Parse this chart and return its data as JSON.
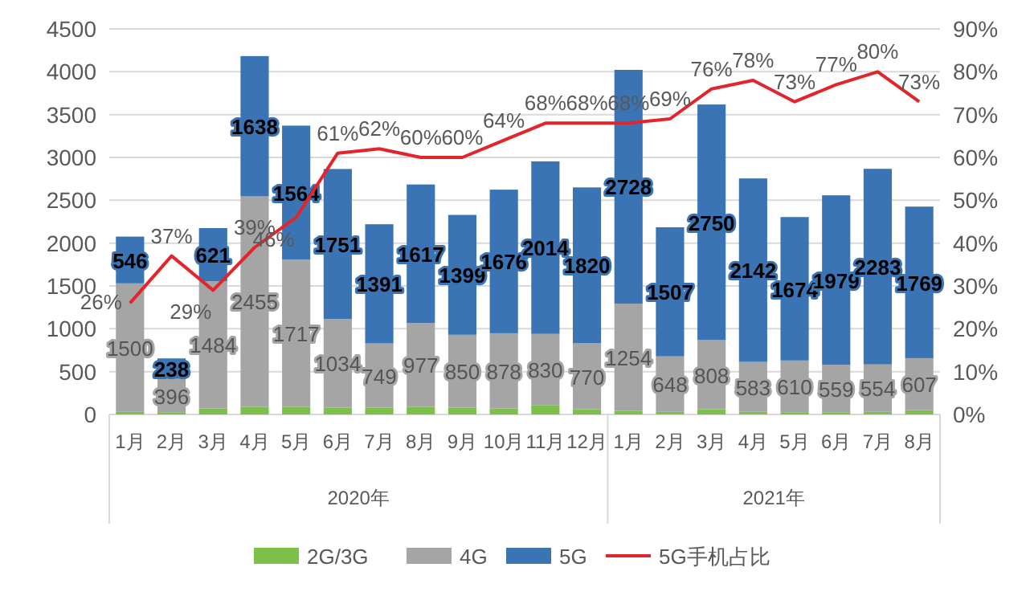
{
  "chart_data": {
    "type": "bar",
    "stacked": true,
    "categories": [
      "1月",
      "2月",
      "3月",
      "4月",
      "5月",
      "6月",
      "7月",
      "8月",
      "9月",
      "10月",
      "11月",
      "12月",
      "1月",
      "2月",
      "3月",
      "4月",
      "5月",
      "6月",
      "7月",
      "8月"
    ],
    "series": [
      {
        "name": "2G/3G",
        "color": "#7cc04a",
        "values": [
          30,
          20,
          70,
          90,
          90,
          80,
          80,
          90,
          80,
          70,
          110,
          60,
          40,
          30,
          60,
          30,
          20,
          20,
          30,
          50
        ]
      },
      {
        "name": "4G",
        "color": "#a5a5a5",
        "values": [
          1500,
          396,
          1484,
          2455,
          1717,
          1034,
          749,
          977,
          850,
          878,
          830,
          770,
          1254,
          648,
          808,
          583,
          610,
          559,
          554,
          607
        ],
        "value_labels": [
          "1500",
          "396",
          "1484",
          "2455",
          "1717",
          "1034",
          "749",
          "977",
          "850",
          "878",
          "830",
          "770",
          "1254",
          "648",
          "808",
          "583",
          "610",
          "559",
          "554",
          "607"
        ]
      },
      {
        "name": "5G",
        "color": "#3b74b4",
        "values": [
          546,
          238,
          621,
          1638,
          1564,
          1751,
          1391,
          1617,
          1399,
          1676,
          2014,
          1820,
          2728,
          1507,
          2750,
          2142,
          1674,
          1979,
          2283,
          1769
        ],
        "value_labels": [
          "546",
          "238",
          "621",
          "1638",
          "1564",
          "1751",
          "1391",
          "1617",
          "1399",
          "1676",
          "2014",
          "1820",
          "2728",
          "1507",
          "2750",
          "2142",
          "1674",
          "1979",
          "2283",
          "1769"
        ]
      },
      {
        "name": "5G手机占比",
        "type": "line",
        "axis": "y2",
        "color": "#e3242b",
        "values": [
          26,
          37,
          29,
          39,
          46,
          61,
          62,
          60,
          60,
          64,
          68,
          68,
          68,
          69,
          76,
          78,
          73,
          77,
          80,
          73
        ],
        "value_labels": [
          "26%",
          "37%",
          "29%",
          "39%",
          "46%",
          "61%",
          "62%",
          "60%",
          "60%",
          "64%",
          "68%",
          "68%",
          "68%",
          "69%",
          "76%",
          "78%",
          "73%",
          "77%",
          "80%",
          "73%"
        ]
      }
    ],
    "ylim": [
      0,
      4500
    ],
    "yticks": [
      0,
      500,
      1000,
      1500,
      2000,
      2500,
      3000,
      3500,
      4000,
      4500
    ],
    "y2lim": [
      0,
      90
    ],
    "y2ticks": [
      {
        "value": 0,
        "label": "0%"
      },
      {
        "value": 10,
        "label": "10%"
      },
      {
        "value": 20,
        "label": "20%"
      },
      {
        "value": 30,
        "label": "30%"
      },
      {
        "value": 40,
        "label": "40%"
      },
      {
        "value": 50,
        "label": "50%"
      },
      {
        "value": 60,
        "label": "60%"
      },
      {
        "value": 70,
        "label": "70%"
      },
      {
        "value": 80,
        "label": "80%"
      },
      {
        "value": 90,
        "label": "90%"
      }
    ],
    "grid": "y",
    "legend": "bottom",
    "annotations": [
      "2020年",
      "2021年"
    ]
  }
}
